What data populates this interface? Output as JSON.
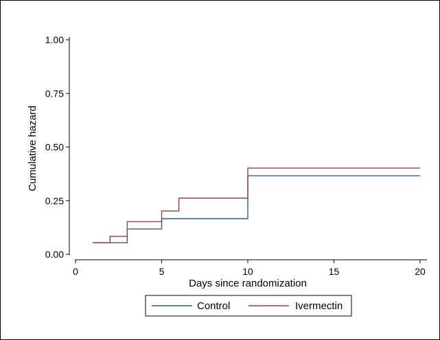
{
  "chart_data": {
    "type": "line",
    "step": true,
    "xlabel": "Days since randomization",
    "ylabel": "Cumulative hazard",
    "xlim": [
      0,
      20
    ],
    "ylim": [
      0,
      1
    ],
    "xticks": [
      0,
      5,
      10,
      15,
      20
    ],
    "yticks": [
      0.0,
      0.25,
      0.5,
      0.75,
      1.0
    ],
    "ytick_labels": [
      "0.00",
      "0.25",
      "0.50",
      "0.75",
      "1.00"
    ],
    "grid": false,
    "legend_position": "bottom",
    "series": [
      {
        "name": "Control",
        "color": "#2f5d8a",
        "points": [
          [
            1,
            0.054
          ],
          [
            3,
            0.054
          ],
          [
            3,
            0.118
          ],
          [
            5,
            0.118
          ],
          [
            5,
            0.166
          ],
          [
            10,
            0.166
          ],
          [
            10,
            0.366
          ],
          [
            20,
            0.366
          ]
        ]
      },
      {
        "name": "Ivermectin",
        "color": "#9e3a4a",
        "points": [
          [
            1,
            0.054
          ],
          [
            2,
            0.054
          ],
          [
            2,
            0.084
          ],
          [
            3,
            0.084
          ],
          [
            3,
            0.152
          ],
          [
            5,
            0.152
          ],
          [
            5,
            0.202
          ],
          [
            6,
            0.202
          ],
          [
            6,
            0.262
          ],
          [
            10,
            0.262
          ],
          [
            10,
            0.402
          ],
          [
            20,
            0.402
          ]
        ]
      }
    ]
  }
}
